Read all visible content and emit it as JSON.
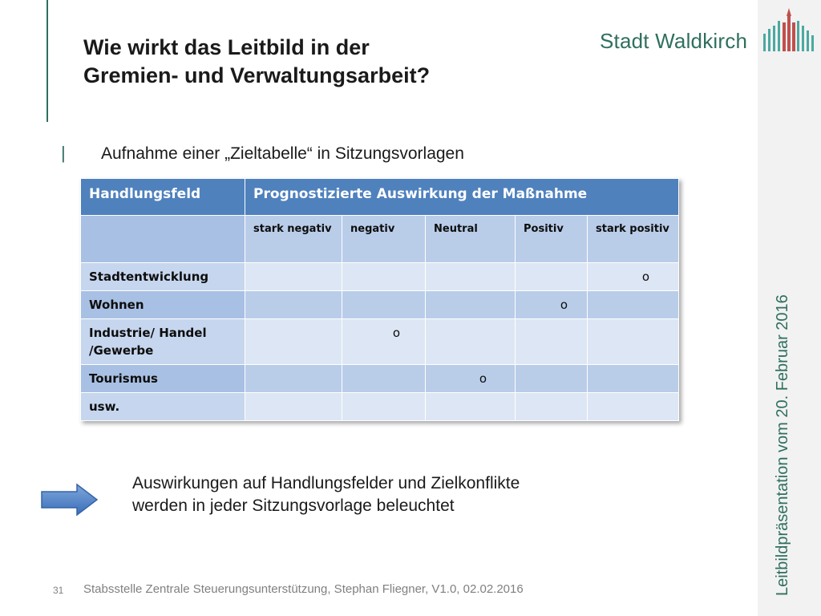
{
  "title_line1": "Wie wirkt das Leitbild in der",
  "title_line2": "Gremien- und Verwaltungsarbeit?",
  "logo_text": "Stadt Waldkirch",
  "vertical_label": "Leitbildpräsentation vom 20. Februar 2016",
  "bullet_marker": "|",
  "bullet_text": "Aufnahme einer „Zieltabelle“ in Sitzungsvorlagen",
  "table": {
    "header_col1": "Handlungsfeld",
    "header_col2": "Prognostizierte Auswirkung der Maßnahme",
    "sub_headers": [
      "stark negativ",
      "negativ",
      "Neutral",
      "Positiv",
      "stark positiv"
    ],
    "rows": [
      {
        "label": "Stadtentwicklung",
        "marks": [
          "",
          "",
          "",
          "",
          "o"
        ]
      },
      {
        "label": "Wohnen",
        "marks": [
          "",
          "",
          "",
          "o",
          ""
        ]
      },
      {
        "label": "Industrie/ Handel /Gewerbe",
        "marks": [
          "",
          "o",
          "",
          "",
          ""
        ]
      },
      {
        "label": "Tourismus",
        "marks": [
          "",
          "",
          "o",
          "",
          ""
        ]
      },
      {
        "label": "usw.",
        "marks": [
          "",
          "",
          "",
          "",
          ""
        ]
      }
    ]
  },
  "note_line1": "Auswirkungen auf Handlungsfelder und Zielkonflikte",
  "note_line2": "werden in jeder Sitzungsvorlage beleuchtet",
  "page_number": "31",
  "footer": "Stabsstelle Zentrale Steuerungsunterstützung, Stephan Fliegner, V1.0, 02.02.2016",
  "colors": {
    "accent": "#2f6f5e",
    "table_header": "#4f81bd",
    "arrow": "#4f81bd"
  }
}
